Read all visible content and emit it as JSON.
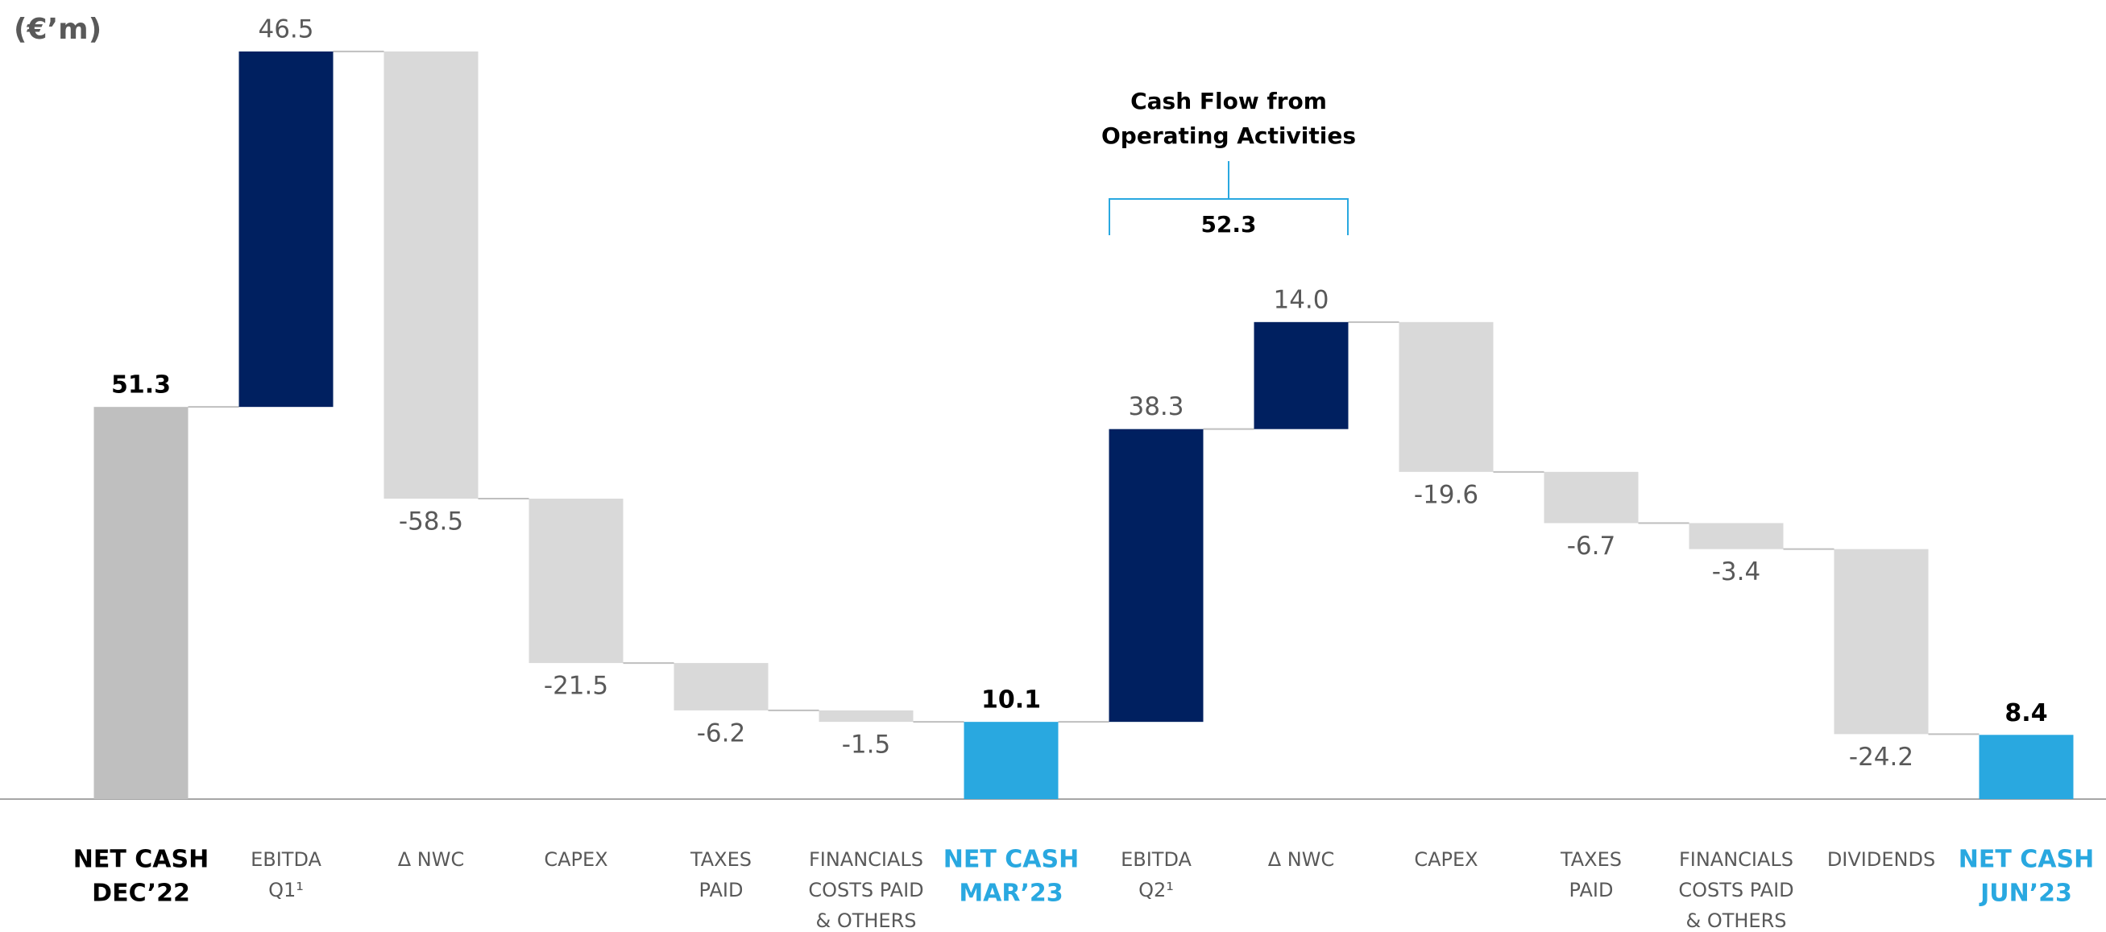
{
  "chart_data": {
    "type": "waterfall",
    "unit_label": "(€’m)",
    "categories": [
      [
        "NET CASH",
        "DEC’22"
      ],
      [
        "EBITDA",
        "Q1¹"
      ],
      [
        "Δ NWC"
      ],
      [
        "CAPEX"
      ],
      [
        "TAXES",
        "PAID"
      ],
      [
        "FINANCIALS",
        "COSTS PAID",
        "& OTHERS"
      ],
      [
        "NET CASH",
        "MAR’23"
      ],
      [
        "EBITDA",
        "Q2¹"
      ],
      [
        "Δ NWC"
      ],
      [
        "CAPEX"
      ],
      [
        "TAXES",
        "PAID"
      ],
      [
        "FINANCIALS",
        "COSTS PAID",
        "& OTHERS"
      ],
      [
        "DIVIDENDS"
      ],
      [
        "NET CASH",
        "JUN’23"
      ]
    ],
    "measures": [
      "total",
      "relative",
      "relative",
      "relative",
      "relative",
      "relative",
      "total",
      "relative",
      "relative",
      "relative",
      "relative",
      "relative",
      "relative",
      "total"
    ],
    "values": [
      51.3,
      46.5,
      -58.5,
      -21.5,
      -6.2,
      -1.5,
      10.1,
      38.3,
      14.0,
      -19.6,
      -6.7,
      -3.4,
      -24.2,
      8.4
    ],
    "value_labels": [
      "51.3",
      "46.5",
      "-58.5",
      "-21.5",
      "-6.2",
      "-1.5",
      "10.1",
      "38.3",
      "14.0",
      "-19.6",
      "-6.7",
      "-3.4",
      "-24.2",
      "8.4"
    ],
    "colors": [
      "#bfbfbf",
      "#002060",
      "#d9d9d9",
      "#d9d9d9",
      "#d9d9d9",
      "#d9d9d9",
      "#29a8e0",
      "#002060",
      "#002060",
      "#d9d9d9",
      "#d9d9d9",
      "#d9d9d9",
      "#d9d9d9",
      "#29a8e0"
    ],
    "ylim": [
      0,
      100
    ],
    "annotation": {
      "text": [
        "Cash Flow from",
        "Operating Activities"
      ],
      "value": 52.3
    }
  }
}
